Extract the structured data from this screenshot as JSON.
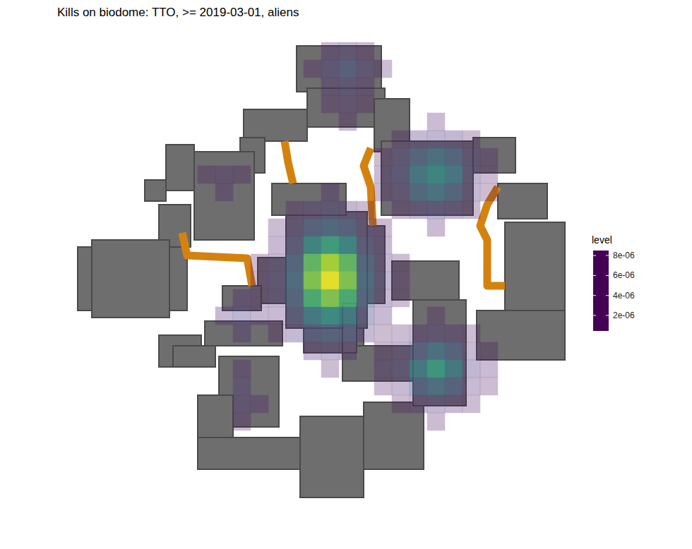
{
  "chart_data": {
    "type": "heatmap",
    "title": "Kills on biodome: TTO, >= 2019-03-01, aliens",
    "xlim": [
      0,
      27
    ],
    "ylim": [
      0,
      25
    ],
    "tick_labels": false,
    "grid": false,
    "color": "viridis",
    "color_title": "level",
    "color_range": [
      4.5e-07,
      8.5e-06
    ],
    "color_ticks": [
      {
        "value": 2e-06,
        "label": "2e-06"
      },
      {
        "value": 4e-06,
        "label": "4e-06"
      },
      {
        "value": 6e-06,
        "label": "6e-06"
      },
      {
        "value": 8e-06,
        "label": "8e-06"
      }
    ],
    "cells": [
      [
        15,
        1,
        2.4e-06
      ],
      [
        14,
        1,
        1.6e-06
      ],
      [
        16,
        1,
        1.5e-06
      ],
      [
        15,
        0,
        1.4e-06
      ],
      [
        15,
        2,
        1.6e-06
      ],
      [
        14,
        2,
        1.1e-06
      ],
      [
        16,
        2,
        1e-06
      ],
      [
        15,
        3,
        1.1e-06
      ],
      [
        14,
        0,
        9e-07
      ],
      [
        16,
        0,
        8e-07
      ],
      [
        13,
        1,
        8e-07
      ],
      [
        17,
        1,
        7e-07
      ],
      [
        14,
        3,
        8e-07
      ],
      [
        16,
        3,
        7e-07
      ],
      [
        15,
        4,
        8e-07
      ],
      [
        14,
        8,
        9e-07
      ],
      [
        12,
        9,
        8e-07
      ],
      [
        13,
        9,
        1.3e-06
      ],
      [
        14,
        9,
        1.6e-06
      ],
      [
        15,
        9,
        1.3e-06
      ],
      [
        16,
        9,
        8e-07
      ],
      [
        11,
        10,
        8e-07
      ],
      [
        12,
        10,
        1.2e-06
      ],
      [
        13,
        10,
        2.5e-06
      ],
      [
        14,
        10,
        3e-06
      ],
      [
        15,
        10,
        2.5e-06
      ],
      [
        16,
        10,
        1.2e-06
      ],
      [
        17,
        10,
        8e-07
      ],
      [
        11,
        11,
        1e-06
      ],
      [
        12,
        11,
        2e-06
      ],
      [
        13,
        11,
        4.5e-06
      ],
      [
        14,
        11,
        5.5e-06
      ],
      [
        15,
        11,
        4.5e-06
      ],
      [
        16,
        11,
        2e-06
      ],
      [
        17,
        11,
        1e-06
      ],
      [
        10,
        12,
        7e-07
      ],
      [
        11,
        12,
        1.2e-06
      ],
      [
        12,
        12,
        2.8e-06
      ],
      [
        13,
        12,
        6.5e-06
      ],
      [
        14,
        12,
        7.5e-06
      ],
      [
        15,
        12,
        6.5e-06
      ],
      [
        16,
        12,
        2.8e-06
      ],
      [
        17,
        12,
        1.2e-06
      ],
      [
        18,
        12,
        7e-07
      ],
      [
        10,
        13,
        8e-07
      ],
      [
        11,
        13,
        1.5e-06
      ],
      [
        12,
        13,
        3.2e-06
      ],
      [
        13,
        13,
        7e-06
      ],
      [
        14,
        13,
        8.3e-06
      ],
      [
        15,
        13,
        7e-06
      ],
      [
        16,
        13,
        3.2e-06
      ],
      [
        17,
        13,
        1.5e-06
      ],
      [
        18,
        13,
        8e-07
      ],
      [
        10,
        14,
        7e-07
      ],
      [
        11,
        14,
        1.2e-06
      ],
      [
        12,
        14,
        2.8e-06
      ],
      [
        13,
        14,
        6e-06
      ],
      [
        14,
        14,
        7e-06
      ],
      [
        15,
        14,
        6e-06
      ],
      [
        16,
        14,
        2.8e-06
      ],
      [
        17,
        14,
        1.2e-06
      ],
      [
        18,
        14,
        7e-07
      ],
      [
        11,
        15,
        1e-06
      ],
      [
        12,
        15,
        2e-06
      ],
      [
        13,
        15,
        4e-06
      ],
      [
        14,
        15,
        4.8e-06
      ],
      [
        15,
        15,
        4e-06
      ],
      [
        16,
        15,
        2e-06
      ],
      [
        17,
        15,
        1e-06
      ],
      [
        11,
        16,
        7e-07
      ],
      [
        12,
        16,
        1.2e-06
      ],
      [
        13,
        16,
        2.2e-06
      ],
      [
        14,
        16,
        2.6e-06
      ],
      [
        15,
        16,
        2.2e-06
      ],
      [
        16,
        16,
        1.2e-06
      ],
      [
        17,
        16,
        7e-07
      ],
      [
        13,
        17,
        9e-07
      ],
      [
        14,
        17,
        1.2e-06
      ],
      [
        15,
        17,
        9e-07
      ],
      [
        14,
        18,
        7e-07
      ],
      [
        20,
        4,
        8e-07
      ],
      [
        18,
        5,
        7e-07
      ],
      [
        19,
        5,
        1.2e-06
      ],
      [
        20,
        5,
        1.5e-06
      ],
      [
        21,
        5,
        1.3e-06
      ],
      [
        22,
        5,
        7e-07
      ],
      [
        17,
        6,
        7e-07
      ],
      [
        18,
        6,
        1.5e-06
      ],
      [
        19,
        6,
        2.8e-06
      ],
      [
        20,
        6,
        3.5e-06
      ],
      [
        21,
        6,
        2.8e-06
      ],
      [
        22,
        6,
        1.2e-06
      ],
      [
        23,
        6,
        8e-07
      ],
      [
        17,
        7,
        9e-07
      ],
      [
        18,
        7,
        1.8e-06
      ],
      [
        19,
        7,
        3.8e-06
      ],
      [
        20,
        7,
        4.6e-06
      ],
      [
        21,
        7,
        3.8e-06
      ],
      [
        22,
        7,
        1.5e-06
      ],
      [
        23,
        7,
        8e-07
      ],
      [
        17,
        8,
        8e-07
      ],
      [
        18,
        8,
        1.4e-06
      ],
      [
        19,
        8,
        3e-06
      ],
      [
        20,
        8,
        3.6e-06
      ],
      [
        21,
        8,
        2.8e-06
      ],
      [
        22,
        8,
        1.2e-06
      ],
      [
        23,
        8,
        7e-07
      ],
      [
        18,
        9,
        8e-07
      ],
      [
        19,
        9,
        1.5e-06
      ],
      [
        20,
        9,
        1.8e-06
      ],
      [
        21,
        9,
        1.4e-06
      ],
      [
        22,
        9,
        8e-07
      ],
      [
        20,
        10,
        9e-07
      ],
      [
        20,
        15,
        8e-07
      ],
      [
        18,
        16,
        7e-07
      ],
      [
        19,
        16,
        1e-06
      ],
      [
        20,
        16,
        1.2e-06
      ],
      [
        21,
        16,
        1e-06
      ],
      [
        22,
        16,
        7e-07
      ],
      [
        17,
        17,
        7e-07
      ],
      [
        18,
        17,
        1.1e-06
      ],
      [
        19,
        17,
        2.5e-06
      ],
      [
        20,
        17,
        3.5e-06
      ],
      [
        21,
        17,
        2.6e-06
      ],
      [
        22,
        17,
        1.1e-06
      ],
      [
        23,
        17,
        7e-07
      ],
      [
        17,
        18,
        9e-07
      ],
      [
        18,
        18,
        1.5e-06
      ],
      [
        19,
        18,
        4e-06
      ],
      [
        20,
        18,
        5.3e-06
      ],
      [
        21,
        18,
        4e-06
      ],
      [
        22,
        18,
        1.5e-06
      ],
      [
        23,
        18,
        9e-07
      ],
      [
        17,
        19,
        7e-07
      ],
      [
        18,
        19,
        1.1e-06
      ],
      [
        19,
        19,
        2.6e-06
      ],
      [
        20,
        19,
        3.4e-06
      ],
      [
        21,
        19,
        2.6e-06
      ],
      [
        22,
        19,
        1.1e-06
      ],
      [
        23,
        19,
        7e-07
      ],
      [
        18,
        20,
        7e-07
      ],
      [
        19,
        20,
        1e-06
      ],
      [
        20,
        20,
        1.3e-06
      ],
      [
        21,
        20,
        1e-06
      ],
      [
        22,
        20,
        7e-07
      ],
      [
        20,
        21,
        8e-07
      ],
      [
        9,
        15,
        1.6e-06
      ],
      [
        8,
        15,
        1e-06
      ],
      [
        10,
        15,
        1e-06
      ],
      [
        9,
        14,
        1e-06
      ],
      [
        9,
        16,
        1.1e-06
      ],
      [
        9,
        19,
        1.4e-06
      ],
      [
        9,
        20,
        1.3e-06
      ],
      [
        10,
        20,
        9e-07
      ],
      [
        9,
        18,
        9e-07
      ],
      [
        9,
        21,
        8e-07
      ],
      [
        8,
        7,
        1e-06
      ],
      [
        8,
        8,
        9e-07
      ],
      [
        7,
        7,
        7e-07
      ],
      [
        9,
        7,
        7e-07
      ]
    ]
  }
}
